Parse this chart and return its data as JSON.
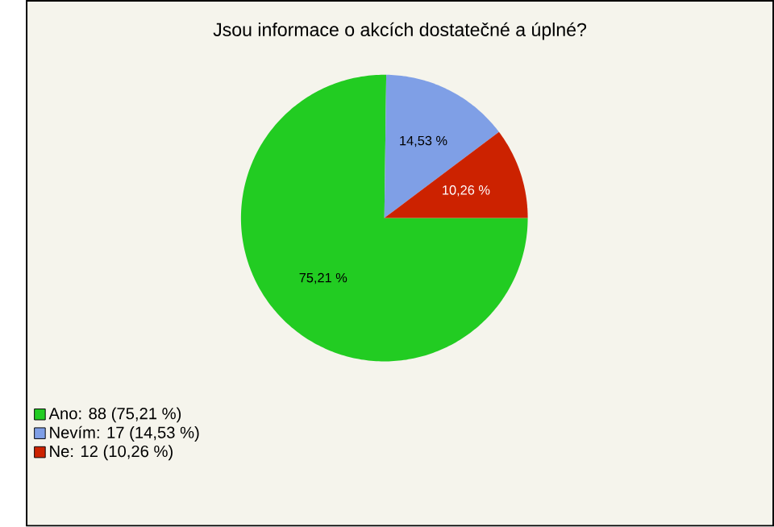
{
  "chart_data": {
    "type": "pie",
    "title": "Jsou informace o akcích dostatečné a úplné?",
    "categories": [
      "Ano: 88 (75,21 %)",
      "Nevím: 17 (14,53 %)",
      "Ne: 12 (10,26 %)"
    ],
    "values": [
      75.21,
      14.53,
      10.26
    ],
    "colors": [
      "#22cc22",
      "#7f9fe6",
      "#cc2200"
    ],
    "value_labels": [
      "75,21 %",
      "14,53 %",
      "10,26 %"
    ],
    "legend": "bottom left"
  }
}
